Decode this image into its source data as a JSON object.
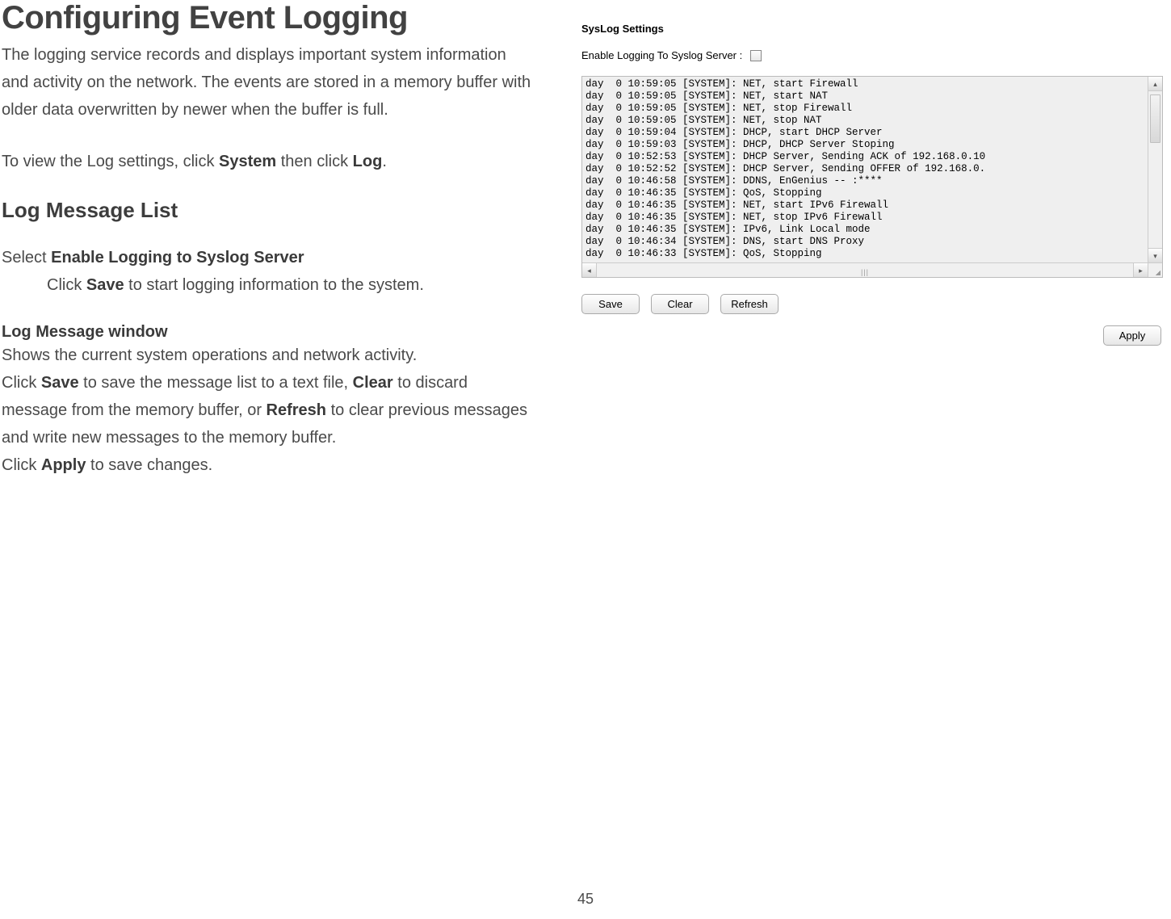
{
  "left": {
    "title": "Configuring Event Logging",
    "intro": "The logging service records and displays important system information and activity on the network. The events are stored in a memory buffer with older data overwritten by newer when the buffer is full.",
    "viewInstr_pre": "To view the Log settings, click ",
    "viewInstr_b1": "System",
    "viewInstr_mid": " then click ",
    "viewInstr_b2": "Log",
    "viewInstr_post": ".",
    "section": "Log Message List",
    "select_pre": "Select ",
    "select_bold": "Enable Logging to Syslog Server",
    "clickSave_pre": "Click ",
    "clickSave_b": "Save",
    "clickSave_post": " to start logging information to the system.",
    "subhead": "Log Message window",
    "shows": "Shows the current system operations and network activity.",
    "actions_c1a": "Click ",
    "actions_save": "Save",
    "actions_c1b": " to save the message list to a text file, ",
    "actions_clear": "Clear",
    "actions_c1c": " to discard message from the memory buffer, or ",
    "actions_refresh": "Refresh",
    "actions_c1d": " to clear previous messages and write new messages to the memory buffer.",
    "apply_pre": "Click ",
    "apply_b": "Apply",
    "apply_post": " to save changes."
  },
  "panel": {
    "title": "SysLog Settings",
    "enableLabel": "Enable Logging To Syslog Server :",
    "logLines": "day  0 10:59:05 [SYSTEM]: NET, start Firewall\nday  0 10:59:05 [SYSTEM]: NET, start NAT\nday  0 10:59:05 [SYSTEM]: NET, stop Firewall\nday  0 10:59:05 [SYSTEM]: NET, stop NAT\nday  0 10:59:04 [SYSTEM]: DHCP, start DHCP Server\nday  0 10:59:03 [SYSTEM]: DHCP, DHCP Server Stoping\nday  0 10:52:53 [SYSTEM]: DHCP Server, Sending ACK of 192.168.0.10\nday  0 10:52:52 [SYSTEM]: DHCP Server, Sending OFFER of 192.168.0.\nday  0 10:46:58 [SYSTEM]: DDNS, EnGenius -- :****\nday  0 10:46:35 [SYSTEM]: QoS, Stopping\nday  0 10:46:35 [SYSTEM]: NET, start IPv6 Firewall\nday  0 10:46:35 [SYSTEM]: NET, stop IPv6 Firewall\nday  0 10:46:35 [SYSTEM]: IPv6, Link Local mode\nday  0 10:46:34 [SYSTEM]: DNS, start DNS Proxy\nday  0 10:46:33 [SYSTEM]: QoS, Stopping",
    "buttons": {
      "save": "Save",
      "clear": "Clear",
      "refresh": "Refresh",
      "apply": "Apply"
    }
  },
  "pageNumber": "45"
}
